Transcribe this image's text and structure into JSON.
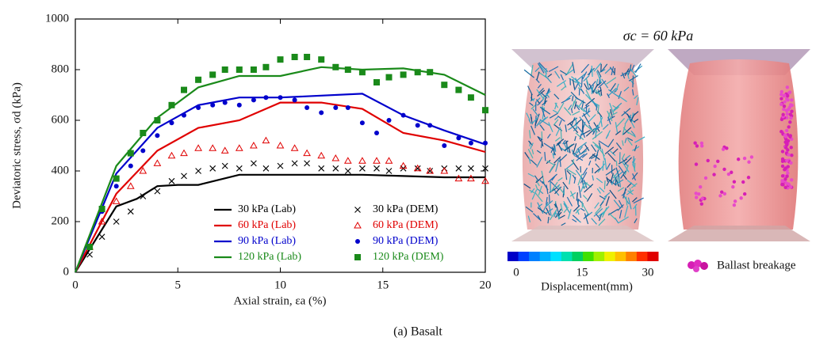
{
  "chart_data": {
    "type": "line_scatter",
    "xlabel": "Axial strain, εa (%)",
    "ylabel": "Deviatoric stress, σd (kPa)",
    "xlim": [
      0,
      20
    ],
    "xticks": [
      0,
      5,
      10,
      15,
      20
    ],
    "ylim": [
      0,
      1000
    ],
    "yticks": [
      0,
      200,
      400,
      600,
      800,
      1000
    ],
    "legend": "lower right",
    "series": [
      {
        "name": "30 kPa (Lab)",
        "color": "#000000",
        "marker": "line",
        "x": [
          0,
          2,
          3,
          4,
          5,
          6,
          8,
          10,
          14,
          16,
          18,
          20
        ],
        "values": [
          0,
          260,
          290,
          340,
          345,
          345,
          385,
          385,
          385,
          380,
          375,
          375
        ]
      },
      {
        "name": "60 kPa (Lab)",
        "color": "#e00000",
        "marker": "line",
        "x": [
          0,
          2,
          4,
          6,
          8,
          10,
          12,
          14,
          16,
          18,
          20
        ],
        "values": [
          0,
          310,
          480,
          570,
          600,
          670,
          670,
          645,
          550,
          520,
          475
        ]
      },
      {
        "name": "90 kPa (Lab)",
        "color": "#0000cc",
        "marker": "line",
        "x": [
          0,
          2,
          4,
          6,
          8,
          10,
          14,
          16,
          18,
          20
        ],
        "values": [
          0,
          390,
          570,
          660,
          690,
          690,
          705,
          620,
          560,
          505
        ]
      },
      {
        "name": "120 kPa (Lab)",
        "color": "#1a8a1a",
        "marker": "line",
        "x": [
          0,
          2,
          4,
          6,
          8,
          10,
          12,
          14,
          16,
          18,
          20
        ],
        "values": [
          0,
          420,
          610,
          730,
          775,
          775,
          810,
          800,
          805,
          780,
          700
        ]
      },
      {
        "name": "30 kPa (DEM)",
        "color": "#000000",
        "marker": "x",
        "x": [
          0.7,
          1.3,
          2,
          2.7,
          3.3,
          4,
          4.7,
          5.3,
          6,
          6.7,
          7.3,
          8,
          8.7,
          9.3,
          10,
          10.7,
          11.3,
          12,
          12.7,
          13.3,
          14,
          14.7,
          15.3,
          16,
          16.7,
          17.3,
          18,
          18.7,
          19.3,
          20
        ],
        "values": [
          70,
          140,
          200,
          240,
          300,
          320,
          360,
          380,
          400,
          410,
          420,
          410,
          430,
          410,
          420,
          430,
          430,
          410,
          410,
          400,
          410,
          410,
          400,
          410,
          410,
          400,
          410,
          410,
          410,
          410
        ]
      },
      {
        "name": "60 kPa (DEM)",
        "color": "#e00000",
        "marker": "triangle",
        "x": [
          0.7,
          1.3,
          2,
          2.7,
          3.3,
          4,
          4.7,
          5.3,
          6,
          6.7,
          7.3,
          8,
          8.7,
          9.3,
          10,
          10.7,
          11.3,
          12,
          12.7,
          13.3,
          14,
          14.7,
          15.3,
          16,
          16.7,
          17.3,
          18,
          18.7,
          19.3,
          20
        ],
        "values": [
          100,
          200,
          280,
          340,
          400,
          430,
          460,
          470,
          490,
          490,
          480,
          490,
          500,
          520,
          500,
          490,
          470,
          460,
          450,
          440,
          440,
          440,
          440,
          420,
          410,
          400,
          400,
          370,
          370,
          360
        ]
      },
      {
        "name": "90 kPa (DEM)",
        "color": "#0000cc",
        "marker": "circle",
        "x": [
          0.7,
          1.3,
          2,
          2.7,
          3.3,
          4,
          4.7,
          5.3,
          6,
          6.7,
          7.3,
          8,
          8.7,
          9.3,
          10,
          10.7,
          11.3,
          12,
          12.7,
          13.3,
          14,
          14.7,
          15.3,
          16,
          16.7,
          17.3,
          18,
          18.7,
          19.3,
          20
        ],
        "values": [
          100,
          240,
          340,
          420,
          480,
          540,
          590,
          620,
          650,
          660,
          670,
          660,
          680,
          690,
          690,
          680,
          650,
          630,
          650,
          650,
          590,
          550,
          600,
          620,
          580,
          580,
          500,
          530,
          510,
          510
        ]
      },
      {
        "name": "120 kPa (DEM)",
        "color": "#1a8a1a",
        "marker": "square",
        "x": [
          0.7,
          1.3,
          2,
          2.7,
          3.3,
          4,
          4.7,
          5.3,
          6,
          6.7,
          7.3,
          8,
          8.7,
          9.3,
          10,
          10.7,
          11.3,
          12,
          12.7,
          13.3,
          14,
          14.7,
          15.3,
          16,
          16.7,
          17.3,
          18,
          18.7,
          19.3,
          20
        ],
        "values": [
          100,
          250,
          370,
          470,
          550,
          600,
          660,
          720,
          760,
          780,
          800,
          800,
          800,
          810,
          840,
          850,
          850,
          840,
          810,
          800,
          790,
          750,
          770,
          780,
          790,
          790,
          740,
          720,
          690,
          640
        ]
      }
    ]
  },
  "panel": {
    "title": "σc = 60 kPa",
    "colorbar": {
      "label": "Displacement(mm)",
      "lim": [
        0,
        30
      ],
      "ticks": [
        0,
        15,
        30
      ]
    },
    "breakage_label": "Ballast breakage"
  },
  "caption": "(a) Basalt"
}
